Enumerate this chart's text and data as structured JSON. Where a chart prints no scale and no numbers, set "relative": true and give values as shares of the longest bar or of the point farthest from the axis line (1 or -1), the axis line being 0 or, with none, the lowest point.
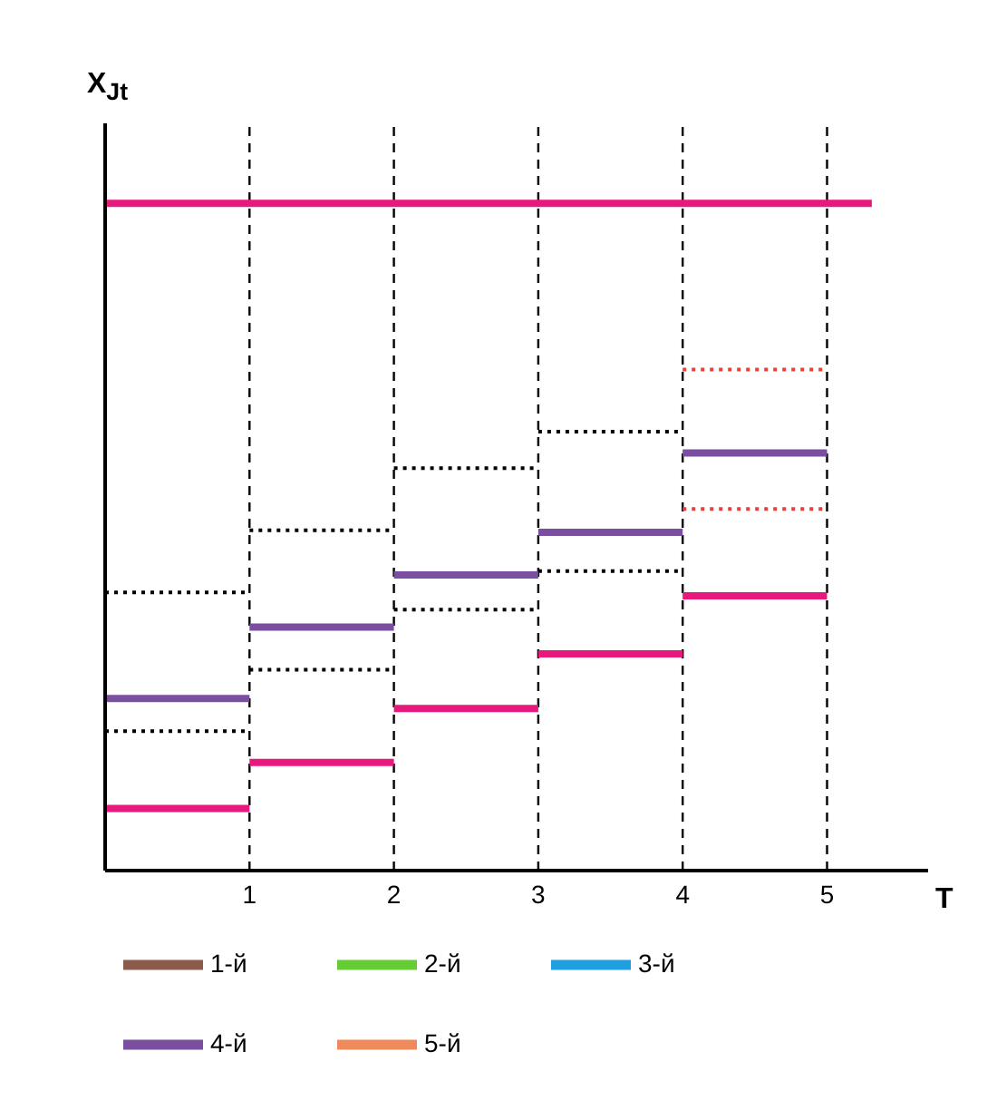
{
  "chart_data": {
    "type": "line",
    "relative": true,
    "xlabel": "T",
    "ylabel": "X$_{Jt}$",
    "xlim": [
      0,
      5.7
    ],
    "xticks": [
      1,
      2,
      3,
      4,
      5
    ],
    "legend": "bottom",
    "marker": "none",
    "ref_lines": [
      {
        "axis": "x",
        "value": 1,
        "line_style": "dashed",
        "color": "#000000"
      },
      {
        "axis": "x",
        "value": 2,
        "line_style": "dashed",
        "color": "#000000"
      },
      {
        "axis": "x",
        "value": 3,
        "line_style": "dashed",
        "color": "#000000"
      },
      {
        "axis": "x",
        "value": 4,
        "line_style": "dashed",
        "color": "#000000"
      },
      {
        "axis": "x",
        "value": 5,
        "line_style": "dashed",
        "color": "#000000"
      }
    ],
    "series": [
      {
        "name": "1-й",
        "color": "#8b5a4a"
      },
      {
        "name": "2-й",
        "color": "#66cc33"
      },
      {
        "name": "3-й",
        "color": "#1ea0e0"
      },
      {
        "name": "4-й",
        "color": "#7b4fa0",
        "line_style": "solid",
        "x": [
          0,
          1,
          1,
          2,
          2,
          3,
          3,
          4,
          4,
          5
        ],
        "values": [
          0.258,
          0.258,
          0.365,
          0.365,
          0.443,
          0.443,
          0.507,
          0.507,
          0.626,
          0.626
        ]
      },
      {
        "name": "5-й",
        "color": "#f08a5a"
      },
      {
        "color": "#e8197d",
        "line_style": "solid",
        "x": [
          0,
          5.31
        ],
        "values": [
          1,
          1
        ]
      },
      {
        "color": "#e8197d",
        "line_style": "solid",
        "x": [
          0,
          1,
          1,
          2,
          2,
          3,
          3,
          4,
          4,
          5
        ],
        "values": [
          0.093,
          0.093,
          0.162,
          0.162,
          0.243,
          0.243,
          0.325,
          0.325,
          0.412,
          0.412
        ]
      },
      {
        "color": "#000000",
        "line_style": "dotted",
        "x": [
          0,
          1,
          1,
          2,
          2,
          3,
          3,
          4
        ],
        "values": [
          0.417,
          0.417,
          0.51,
          0.51,
          0.603,
          0.603,
          0.658,
          0.658
        ]
      },
      {
        "color": "#000000",
        "line_style": "dotted",
        "x": [
          0,
          1,
          1,
          2,
          2,
          3,
          3,
          4
        ],
        "values": [
          0.209,
          0.209,
          0.301,
          0.301,
          0.391,
          0.391,
          0.449,
          0.449
        ]
      },
      {
        "color": "#e8403a",
        "line_style": "dotted",
        "x": [
          4,
          5
        ],
        "values": [
          0.751,
          0.751
        ]
      },
      {
        "color": "#e8403a",
        "line_style": "dotted",
        "x": [
          4,
          5
        ],
        "values": [
          0.542,
          0.542
        ]
      }
    ]
  }
}
